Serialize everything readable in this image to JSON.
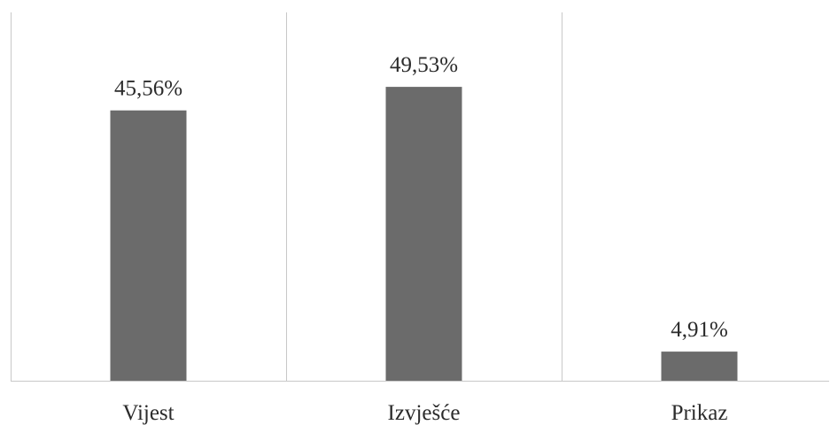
{
  "chart_data": {
    "type": "bar",
    "categories": [
      "Vijest",
      "Izvješće",
      "Prikaz"
    ],
    "values": [
      45.56,
      49.53,
      4.91
    ],
    "data_labels": [
      "45,56%",
      "49,53%",
      "4,91%"
    ],
    "title": "",
    "xlabel": "",
    "ylabel": "",
    "ylim": [
      0,
      60
    ],
    "grid": "vertical category separators",
    "legend": "none",
    "bar_color": "#6b6b6b",
    "axis_color": "#c8c8c8"
  }
}
